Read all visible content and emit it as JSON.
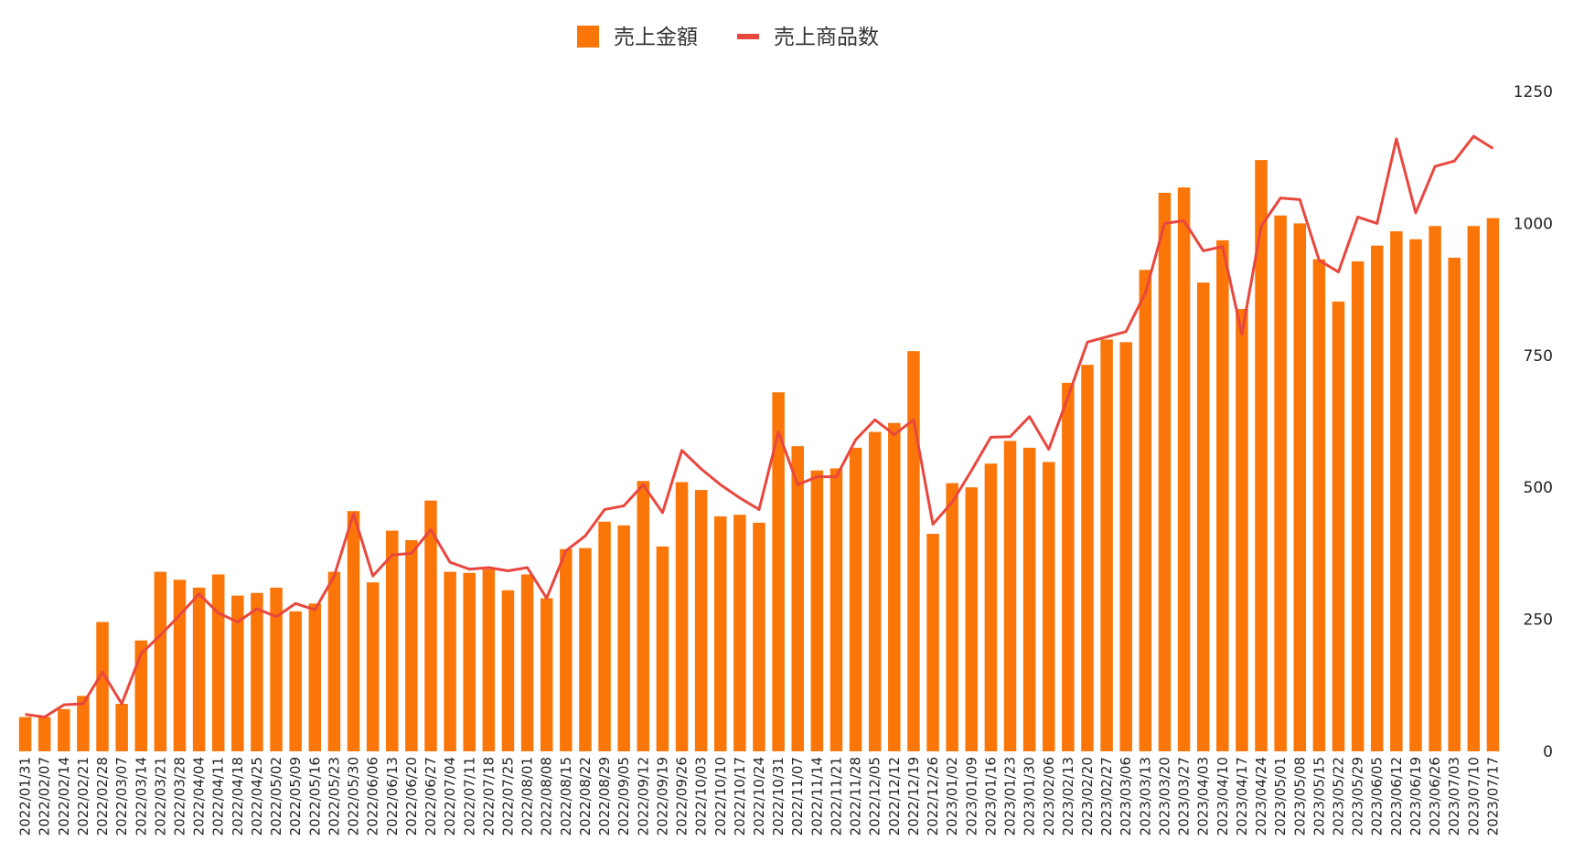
{
  "chart_data": {
    "type": "bar",
    "title": "",
    "xlabel": "",
    "ylabel": "",
    "ylim": [
      0,
      1250
    ],
    "y_ticks": [
      "0",
      "250",
      "500",
      "750",
      "1000",
      "1250"
    ],
    "y_axis_side": "right",
    "grid": false,
    "legend_position": "top-center",
    "categories": [
      "2022/01/31",
      "2022/02/07",
      "2022/02/14",
      "2022/02/21",
      "2022/02/28",
      "2022/03/07",
      "2022/03/14",
      "2022/03/21",
      "2022/03/28",
      "2022/04/04",
      "2022/04/11",
      "2022/04/18",
      "2022/04/25",
      "2022/05/02",
      "2022/05/09",
      "2022/05/16",
      "2022/05/23",
      "2022/05/30",
      "2022/06/06",
      "2022/06/13",
      "2022/06/20",
      "2022/06/27",
      "2022/07/04",
      "2022/07/11",
      "2022/07/18",
      "2022/07/25",
      "2022/08/01",
      "2022/08/08",
      "2022/08/15",
      "2022/08/22",
      "2022/08/29",
      "2022/09/05",
      "2022/09/12",
      "2022/09/19",
      "2022/09/26",
      "2022/10/03",
      "2022/10/10",
      "2022/10/17",
      "2022/10/24",
      "2022/10/31",
      "2022/11/07",
      "2022/11/14",
      "2022/11/21",
      "2022/11/28",
      "2022/12/05",
      "2022/12/12",
      "2022/12/19",
      "2022/12/26",
      "2023/01/02",
      "2023/01/09",
      "2023/01/16",
      "2023/01/23",
      "2023/01/30",
      "2023/02/06",
      "2023/02/13",
      "2023/02/20",
      "2023/02/27",
      "2023/03/06",
      "2023/03/13",
      "2023/03/20",
      "2023/03/27",
      "2023/04/03",
      "2023/04/10",
      "2023/04/17",
      "2023/04/24",
      "2023/05/01",
      "2023/05/08",
      "2023/05/15",
      "2023/05/22",
      "2023/05/29",
      "2023/06/05",
      "2023/06/12",
      "2023/06/19",
      "2023/06/26",
      "2023/07/03",
      "2023/07/10",
      "2023/07/17"
    ],
    "series": [
      {
        "name": "売上金額",
        "type": "bar",
        "color": "#fa7609",
        "values": [
          65,
          65,
          80,
          105,
          245,
          90,
          210,
          340,
          325,
          310,
          335,
          295,
          300,
          310,
          265,
          280,
          340,
          455,
          320,
          418,
          400,
          475,
          340,
          338,
          345,
          305,
          335,
          290,
          383,
          385,
          435,
          428,
          512,
          388,
          510,
          495,
          445,
          448,
          433,
          680,
          578,
          532,
          536,
          575,
          605,
          622,
          758,
          412,
          508,
          500,
          545,
          588,
          575,
          548,
          698,
          732,
          780,
          775,
          912,
          1058,
          1068,
          888,
          968,
          838,
          1120,
          1015,
          1000,
          932,
          852,
          928,
          958,
          985,
          970,
          995,
          935,
          995,
          1010
        ]
      },
      {
        "name": "売上商品数",
        "type": "line",
        "color": "#e8473e",
        "values": [
          70,
          65,
          88,
          90,
          150,
          90,
          185,
          220,
          258,
          298,
          262,
          245,
          270,
          255,
          280,
          268,
          332,
          450,
          332,
          372,
          375,
          420,
          358,
          345,
          348,
          342,
          348,
          290,
          380,
          408,
          458,
          465,
          505,
          452,
          570,
          535,
          505,
          480,
          458,
          605,
          505,
          520,
          520,
          590,
          628,
          600,
          628,
          430,
          472,
          532,
          595,
          596,
          634,
          572,
          672,
          775,
          785,
          795,
          868,
          1000,
          1005,
          948,
          956,
          790,
          995,
          1048,
          1045,
          930,
          908,
          1012,
          1000,
          1160,
          1020,
          1108,
          1118,
          1165,
          1142
        ]
      }
    ]
  }
}
